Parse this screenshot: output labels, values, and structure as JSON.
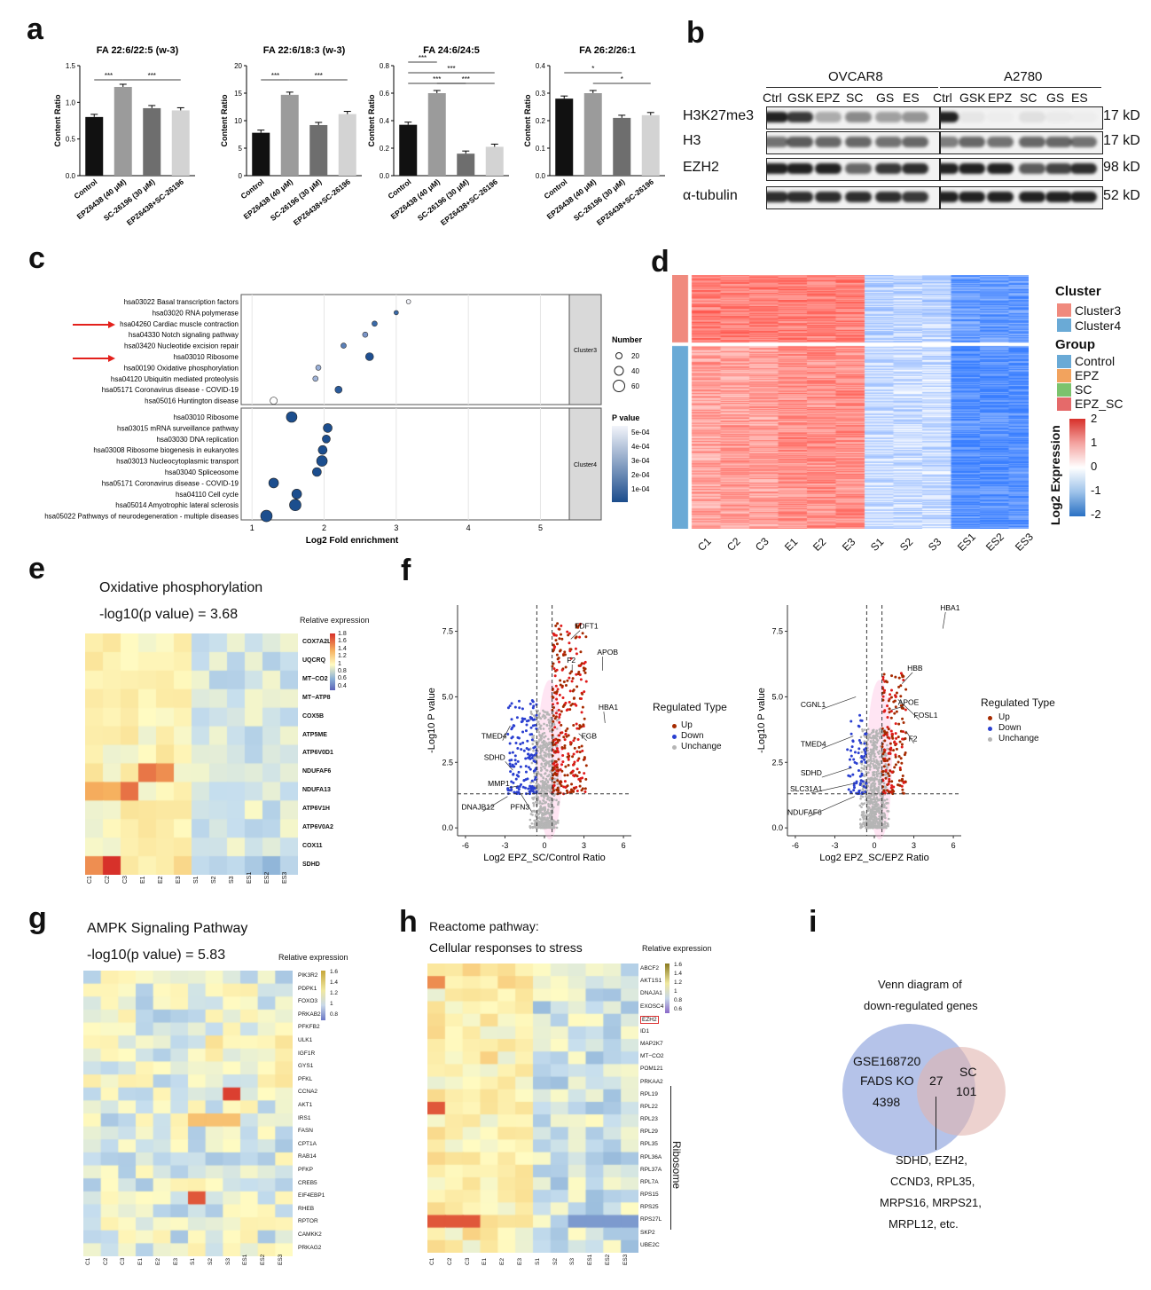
{
  "panels": {
    "a": "a",
    "b": "b",
    "c": "c",
    "d": "d",
    "e": "e",
    "f": "f",
    "g": "g",
    "h": "h",
    "i": "i"
  },
  "panel_a": {
    "ylabel": "Content Ratio",
    "categories": [
      "Control",
      "EPZ6438 (40 μM)",
      "SC-26196 (30 μM)",
      "EPZ6438+SC-26196"
    ],
    "sig": "***",
    "sig1": "*",
    "colors": [
      "#111111",
      "#9b9b9b",
      "#6e6e6e",
      "#d3d3d3"
    ]
  },
  "chart_data": [
    {
      "type": "bar",
      "title": "FA 22:6/22:5 (w-3)",
      "categories": [
        "Control",
        "EPZ6438 (40 μM)",
        "SC-26196 (30 μM)",
        "EPZ6438+SC-26196"
      ],
      "values": [
        0.8,
        1.21,
        0.92,
        0.89
      ],
      "ylim": [
        0,
        1.5
      ],
      "ticks": [
        "0.0",
        "0.5",
        "1.0",
        "1.5"
      ],
      "ylabel": "Content Ratio"
    },
    {
      "type": "bar",
      "title": "FA 22:6/18:3 (w-3)",
      "categories": [
        "Control",
        "EPZ6438 (40 μM)",
        "SC-26196 (30 μM)",
        "EPZ6438+SC-26196"
      ],
      "values": [
        7.8,
        14.7,
        9.2,
        11.2
      ],
      "ylim": [
        0,
        20
      ],
      "ticks": [
        "0",
        "5",
        "10",
        "15",
        "20"
      ],
      "ylabel": "Content Ratio"
    },
    {
      "type": "bar",
      "title": "FA 24:6/24:5",
      "categories": [
        "Control",
        "EPZ6438 (40 μM)",
        "SC-26196 (30 μM)",
        "EPZ6438+SC-26196"
      ],
      "values": [
        0.37,
        0.6,
        0.16,
        0.21
      ],
      "ylim": [
        0,
        0.8
      ],
      "ticks": [
        "0.0",
        "0.2",
        "0.4",
        "0.6",
        "0.8"
      ],
      "ylabel": "Content Ratio"
    },
    {
      "type": "bar",
      "title": "FA 26:2/26:1",
      "categories": [
        "Control",
        "EPZ6438 (40 μM)",
        "SC-26196 (30 μM)",
        "EPZ6438+SC-26196"
      ],
      "values": [
        0.28,
        0.3,
        0.21,
        0.22
      ],
      "ylim": [
        0,
        0.4
      ],
      "ticks": [
        "0.0",
        "0.1",
        "0.2",
        "0.3",
        "0.4"
      ],
      "ylabel": "Content Ratio"
    },
    {
      "type": "scatter",
      "title": "Log2 Fold enrichment",
      "xlabel": "Log2 Fold enrichment",
      "xticks": [
        "1",
        "2",
        "3",
        "4",
        "5"
      ],
      "cluster3": {
        "label": "Cluster3",
        "terms": [
          "hsa03022 Basal transcription factors",
          "hsa03020 RNA polymerase",
          "hsa04260 Cardiac muscle contraction",
          "hsa04330 Notch signaling pathway",
          "hsa03420 Nucleotide excision repair",
          "hsa03010 Ribosome",
          "hsa00190 Oxidative phosphorylation",
          "hsa04120 Ubiquitin mediated proteolysis",
          "hsa05171 Coronavirus disease - COVID-19",
          "hsa05016 Huntington disease"
        ],
        "x": [
          3.17,
          3.0,
          2.7,
          2.57,
          2.27,
          2.63,
          1.92,
          1.88,
          2.2,
          1.3
        ]
      },
      "cluster4": {
        "label": "Cluster4",
        "terms": [
          "hsa03010 Ribosome",
          "hsa03015 mRNA surveillance pathway",
          "hsa03030 DNA replication",
          "hsa03008 Ribosome biogenesis in eukaryotes",
          "hsa03013 Nucleocytoplasmic transport",
          "hsa03040 Spliceosome",
          "hsa05171 Coronavirus disease - COVID-19",
          "hsa04110 Cell cycle",
          "hsa05014 Amyotrophic lateral sclerosis",
          "hsa05022 Pathways of neurodegeneration - multiple diseases"
        ],
        "x": [
          1.55,
          2.05,
          2.03,
          1.98,
          1.97,
          1.9,
          1.3,
          1.62,
          1.6,
          1.2
        ]
      },
      "legend_number": {
        "title": "Number",
        "values": [
          "20",
          "40",
          "60"
        ]
      },
      "legend_p": {
        "title": "P value",
        "values": [
          "5e-04",
          "4e-04",
          "3e-04",
          "2e-04",
          "1e-04"
        ]
      }
    },
    {
      "type": "scatter",
      "xlabel": "Log2 EPZ_SC/Control Ratio",
      "ylabel": "-Log10 P value",
      "xticks": [
        "-6",
        "-3",
        "0",
        "3",
        "6"
      ],
      "yticks": [
        "0.0",
        "2.5",
        "5.0",
        "7.5"
      ],
      "labels": [
        "FDFT1",
        "F2",
        "APOB",
        "HBA1",
        "FGB",
        "TMED4",
        "SDHD",
        "MMP1",
        "DNAJB12",
        "PFN3"
      ]
    },
    {
      "type": "scatter",
      "xlabel": "Log2 EPZ_SC/EPZ Ratio",
      "ylabel": "-Log10 P value",
      "xticks": [
        "-6",
        "-3",
        "0",
        "3",
        "6"
      ],
      "yticks": [
        "0.0",
        "2.5",
        "5.0",
        "7.5"
      ],
      "labels": [
        "HBA1",
        "HBB",
        "APOE",
        "FOSL1",
        "F2",
        "CGNL1",
        "TMED4",
        "SDHD",
        "SLC31A1",
        "NDUFAF6"
      ]
    }
  ],
  "panel_b": {
    "groups": [
      "OVCAR8",
      "A2780"
    ],
    "lanes": [
      "Ctrl",
      "GSK",
      "EPZ",
      "SC",
      "GS",
      "ES"
    ],
    "rows": [
      "H3K27me3",
      "H3",
      "EZH2",
      "α-tubulin"
    ],
    "sizes": [
      "17 kD",
      "17 kD",
      "98 kD",
      "52 kD"
    ]
  },
  "panel_d": {
    "columns": [
      "C1",
      "C2",
      "C3",
      "E1",
      "E2",
      "E3",
      "S1",
      "S2",
      "S3",
      "ES1",
      "ES2",
      "ES3"
    ],
    "cluster_title": "Cluster",
    "clusters": [
      {
        "label": "Cluster3",
        "color": "#f08a7e"
      },
      {
        "label": "Cluster4",
        "color": "#6aaad6"
      }
    ],
    "group_title": "Group",
    "groups": [
      {
        "label": "Control",
        "color": "#6aaad6"
      },
      {
        "label": "EPZ",
        "color": "#f2a35e"
      },
      {
        "label": "SC",
        "color": "#7cc36d"
      },
      {
        "label": "EPZ_SC",
        "color": "#e56a6a"
      }
    ],
    "scale_title": "Log2 Expression",
    "scale_ticks": [
      "2",
      "1",
      "0",
      "-1",
      "-2"
    ]
  },
  "panel_e": {
    "title": "Oxidative phosphorylation",
    "pvalue": "-log10(p value) = 3.68",
    "legend_title": "Relative expression",
    "legend_ticks": [
      "1.8",
      "1.6",
      "1.4",
      "1.2",
      "1",
      "0.8",
      "0.6",
      "0.4"
    ],
    "genes": [
      "COX7A2L",
      "UQCRQ",
      "MT−CO2",
      "MT−ATP8",
      "COX5B",
      "ATP5ME",
      "ATP6V0D1",
      "NDUFAF6",
      "NDUFA13",
      "ATP6V1H",
      "ATP6V0A2",
      "COX11",
      "SDHD"
    ],
    "columns": [
      "C1",
      "C2",
      "C3",
      "E1",
      "E2",
      "E3",
      "S1",
      "S2",
      "S3",
      "ES1",
      "ES2",
      "ES3"
    ]
  },
  "panel_f": {
    "legend_title": "Regulated Type",
    "legend_items": [
      {
        "label": "Up",
        "color": "#a52a00"
      },
      {
        "label": "Down",
        "color": "#2a3fd0"
      },
      {
        "label": "Unchange",
        "color": "#b5b5b5"
      }
    ]
  },
  "panel_g": {
    "title": "AMPK Signaling Pathway",
    "pvalue": "-log10(p value) = 5.83",
    "legend_title": "Relative expression",
    "legend_ticks": [
      "1.6",
      "1.4",
      "1.2",
      "1",
      "0.8"
    ],
    "genes": [
      "PIK3R2",
      "PDPK1",
      "FOXO3",
      "PRKAB2",
      "PFKFB2",
      "ULK1",
      "IGF1R",
      "GYS1",
      "PFKL",
      "CCNA2",
      "AKT1",
      "IRS1",
      "FASN",
      "CPT1A",
      "RAB14",
      "PFKP",
      "CREB5",
      "EIF4EBP1",
      "RHEB",
      "RPTOR",
      "CAMKK2",
      "PRKAG2"
    ],
    "columns": [
      "C1",
      "C2",
      "C3",
      "E1",
      "E2",
      "E3",
      "S1",
      "S2",
      "S3",
      "ES1",
      "ES2",
      "ES3"
    ]
  },
  "panel_h": {
    "title1": "Reactome pathway:",
    "title2": "Cellular responses to stress",
    "legend_title": "Relative expression",
    "legend_ticks": [
      "1.6",
      "1.4",
      "1.2",
      "1",
      "0.8",
      "0.6"
    ],
    "genes": [
      "ABCF2",
      "AKT1S1",
      "DNAJA1",
      "EXOSC4",
      "EZH2",
      "ID1",
      "MAP2K7",
      "MT−CO2",
      "POM121",
      "PRKAA2",
      "RPL19",
      "RPL22",
      "RPL23",
      "RPL29",
      "RPL35",
      "RPL36A",
      "RPL37A",
      "RPL7A",
      "RPS15",
      "RPS25",
      "RPS27L",
      "SKP2",
      "UBE2C"
    ],
    "ribosome_label": "Ribosome",
    "columns": [
      "C1",
      "C2",
      "C3",
      "E1",
      "E2",
      "E3",
      "S1",
      "S2",
      "S3",
      "ES1",
      "ES2",
      "ES3"
    ]
  },
  "panel_i": {
    "title1": "Venn diagram of",
    "title2": "down-regulated genes",
    "left_line1": "GSE168720",
    "left_line2": "FADS KO",
    "left_count": "4398",
    "overlap": "27",
    "right_label": "SC",
    "right_count": "101",
    "genes_line1": "SDHD, EZH2,",
    "genes_line2": "CCND3, RPL35,",
    "genes_line3": "MRPS16, MRPS21,",
    "genes_line4": "MRPL12, etc."
  }
}
